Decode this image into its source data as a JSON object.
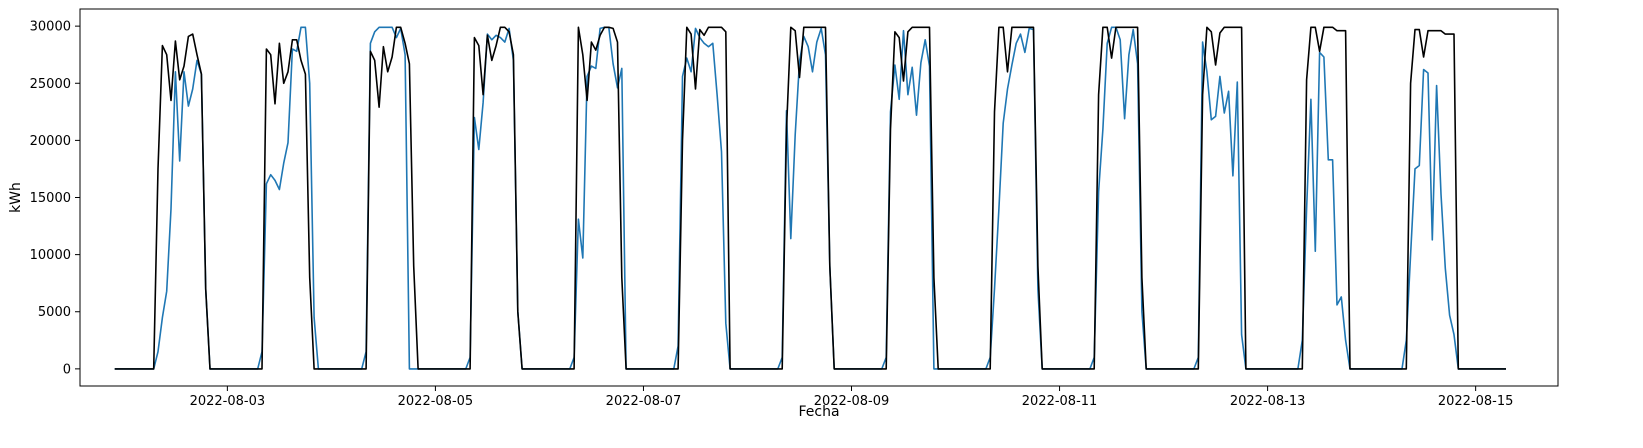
{
  "chart_data": {
    "type": "line",
    "title": "",
    "xlabel": "Fecha",
    "ylabel": "kWh",
    "x_tick_labels": [
      "2022-08-03",
      "2022-08-05",
      "2022-08-07",
      "2022-08-09",
      "2022-08-11",
      "2022-08-13",
      "2022-08-15"
    ],
    "y_tick_labels": [
      "0",
      "5000",
      "10000",
      "15000",
      "20000",
      "25000",
      "30000"
    ],
    "xlim": [
      "2022-08-01T14:00",
      "2022-08-15T19:00"
    ],
    "ylim": [
      -1500,
      31500
    ],
    "grid": false,
    "legend": "none",
    "x_interval_hours": 1,
    "colors": {
      "blue": "#1f77b4",
      "black": "#000000"
    },
    "days": [
      {
        "date": "2022-08-02",
        "blue": [
          0,
          0,
          0,
          0,
          0,
          0,
          0,
          0,
          1500,
          4500,
          6800,
          14000,
          26000,
          18200,
          26000,
          23000,
          24500,
          27000,
          25800,
          7000,
          0,
          0,
          0,
          0,
          0
        ],
        "black": [
          0,
          0,
          0,
          0,
          0,
          0,
          0,
          0,
          17500,
          28300,
          27500,
          23500,
          28700,
          25300,
          26500,
          29100,
          29300,
          27500,
          25800,
          7000,
          0,
          0,
          0,
          0,
          0
        ]
      },
      {
        "date": "2022-08-03",
        "blue": [
          0,
          0,
          0,
          0,
          0,
          0,
          0,
          0,
          1500,
          16200,
          17000,
          16500,
          15700,
          18000,
          19800,
          28000,
          27800,
          29900,
          29900,
          25000,
          4500,
          0,
          0,
          0,
          0
        ],
        "black": [
          0,
          0,
          0,
          0,
          0,
          0,
          0,
          0,
          0,
          28000,
          27500,
          23200,
          28500,
          25000,
          26000,
          28800,
          28800,
          27000,
          25800,
          8000,
          0,
          0,
          0,
          0,
          0
        ]
      },
      {
        "date": "2022-08-04",
        "blue": [
          0,
          0,
          0,
          0,
          0,
          0,
          0,
          0,
          1500,
          28500,
          29500,
          29900,
          29900,
          29900,
          29900,
          29000,
          29800,
          27500,
          0,
          0,
          0,
          0,
          0,
          0,
          0
        ],
        "black": [
          0,
          0,
          0,
          0,
          0,
          0,
          0,
          0,
          0,
          27800,
          27000,
          22900,
          28200,
          26000,
          27300,
          29900,
          29900,
          28500,
          26700,
          9000,
          0,
          0,
          0,
          0,
          0
        ]
      },
      {
        "date": "2022-08-05",
        "blue": [
          0,
          0,
          0,
          0,
          0,
          0,
          0,
          0,
          1000,
          22000,
          19200,
          23300,
          29300,
          28800,
          29200,
          29000,
          28600,
          29800,
          27000,
          5000,
          0,
          0,
          0,
          0,
          0
        ],
        "black": [
          0,
          0,
          0,
          0,
          0,
          0,
          0,
          0,
          0,
          29000,
          28300,
          24000,
          29200,
          27000,
          28300,
          29900,
          29900,
          29500,
          27500,
          5000,
          0,
          0,
          0,
          0,
          0
        ]
      },
      {
        "date": "2022-08-06",
        "blue": [
          0,
          0,
          0,
          0,
          0,
          0,
          0,
          0,
          1000,
          13100,
          9700,
          25600,
          26500,
          26300,
          29800,
          29900,
          29900,
          26700,
          24600,
          26300,
          0,
          0,
          0,
          0,
          0
        ],
        "black": [
          0,
          0,
          0,
          0,
          0,
          0,
          0,
          0,
          0,
          29900,
          27500,
          23500,
          28600,
          27900,
          29200,
          29900,
          29900,
          29800,
          28600,
          8000,
          0,
          0,
          0,
          0,
          0
        ]
      },
      {
        "date": "2022-08-07",
        "blue": [
          0,
          0,
          0,
          0,
          0,
          0,
          0,
          0,
          2000,
          25600,
          27200,
          26000,
          29800,
          29000,
          28500,
          28200,
          28500,
          24000,
          19000,
          4000,
          0,
          0,
          0,
          0,
          0
        ],
        "black": [
          0,
          0,
          0,
          0,
          0,
          0,
          0,
          0,
          0,
          20000,
          29900,
          29300,
          24500,
          29700,
          29200,
          29900,
          29900,
          29900,
          29900,
          29500,
          0,
          0,
          0,
          0,
          0
        ]
      },
      {
        "date": "2022-08-08",
        "blue": [
          0,
          0,
          0,
          0,
          0,
          0,
          0,
          0,
          1000,
          22600,
          11400,
          20500,
          26900,
          29100,
          28200,
          26000,
          28600,
          29800,
          27500,
          9000,
          0,
          0,
          0,
          0,
          0
        ],
        "black": [
          0,
          0,
          0,
          0,
          0,
          0,
          0,
          0,
          0,
          21000,
          29900,
          29600,
          25500,
          29900,
          29900,
          29900,
          29900,
          29900,
          29900,
          9000,
          0,
          0,
          0,
          0,
          0
        ]
      },
      {
        "date": "2022-08-09",
        "blue": [
          0,
          0,
          0,
          0,
          0,
          0,
          0,
          0,
          1000,
          22500,
          26600,
          23600,
          29600,
          24000,
          26400,
          22200,
          26800,
          28800,
          26500,
          0,
          0,
          0,
          0,
          0,
          0
        ],
        "black": [
          0,
          0,
          0,
          0,
          0,
          0,
          0,
          0,
          0,
          21000,
          29500,
          29000,
          25200,
          29500,
          29900,
          29900,
          29900,
          29900,
          29900,
          8000,
          0,
          0,
          0,
          0,
          0
        ]
      },
      {
        "date": "2022-08-10",
        "blue": [
          0,
          0,
          0,
          0,
          0,
          0,
          0,
          0,
          1000,
          7000,
          14000,
          21500,
          24500,
          26600,
          28500,
          29300,
          27700,
          29800,
          29700,
          7000,
          0,
          0,
          0,
          0,
          0
        ],
        "black": [
          0,
          0,
          0,
          0,
          0,
          0,
          0,
          0,
          0,
          22500,
          29900,
          29900,
          26000,
          29900,
          29900,
          29900,
          29900,
          29900,
          29900,
          9000,
          0,
          0,
          0,
          0,
          0
        ]
      },
      {
        "date": "2022-08-11",
        "blue": [
          0,
          0,
          0,
          0,
          0,
          0,
          0,
          0,
          1000,
          15500,
          21000,
          28500,
          29900,
          29900,
          28800,
          21900,
          27500,
          29700,
          26700,
          5000,
          0,
          0,
          0,
          0,
          0
        ],
        "black": [
          0,
          0,
          0,
          0,
          0,
          0,
          0,
          0,
          0,
          24000,
          29900,
          29900,
          27200,
          29900,
          29900,
          29900,
          29900,
          29900,
          29900,
          8000,
          0,
          0,
          0,
          0,
          0
        ]
      },
      {
        "date": "2022-08-12",
        "blue": [
          0,
          0,
          0,
          0,
          0,
          0,
          0,
          0,
          1000,
          28600,
          26000,
          21800,
          22100,
          25600,
          22400,
          24300,
          16900,
          25100,
          3000,
          0,
          0,
          0,
          0,
          0,
          0
        ],
        "black": [
          0,
          0,
          0,
          0,
          0,
          0,
          0,
          0,
          0,
          24000,
          29900,
          29500,
          26600,
          29400,
          29900,
          29900,
          29900,
          29900,
          29900,
          0,
          0,
          0,
          0,
          0,
          0
        ]
      },
      {
        "date": "2022-08-13",
        "blue": [
          0,
          0,
          0,
          0,
          0,
          0,
          0,
          0,
          2500,
          14000,
          23600,
          10300,
          27700,
          27300,
          18300,
          18300,
          5600,
          6300,
          2500,
          0,
          0,
          0,
          0,
          0,
          0
        ],
        "black": [
          0,
          0,
          0,
          0,
          0,
          0,
          0,
          0,
          0,
          25300,
          29900,
          29900,
          27800,
          29900,
          29900,
          29900,
          29600,
          29600,
          29600,
          0,
          0,
          0,
          0,
          0,
          0
        ]
      },
      {
        "date": "2022-08-14",
        "blue": [
          0,
          0,
          0,
          0,
          0,
          0,
          0,
          0,
          2500,
          10000,
          17500,
          17800,
          26200,
          25900,
          11300,
          24800,
          15300,
          8800,
          4700,
          3000,
          0,
          0,
          0,
          0,
          0
        ],
        "black": [
          0,
          0,
          0,
          0,
          0,
          0,
          0,
          0,
          0,
          25000,
          29700,
          29700,
          27300,
          29600,
          29600,
          29600,
          29600,
          29300,
          29300,
          29300,
          0,
          0,
          0,
          0,
          0
        ]
      }
    ],
    "tail": {
      "start": "2022-08-15T00:00",
      "blue": [
        0,
        0,
        0,
        0,
        0,
        0,
        0,
        0
      ],
      "black": [
        0,
        0,
        0,
        0,
        0,
        0,
        0,
        0
      ]
    },
    "head": {
      "start": "2022-08-01T22:00",
      "blue": [
        0,
        0
      ],
      "black": [
        0,
        0
      ]
    }
  }
}
